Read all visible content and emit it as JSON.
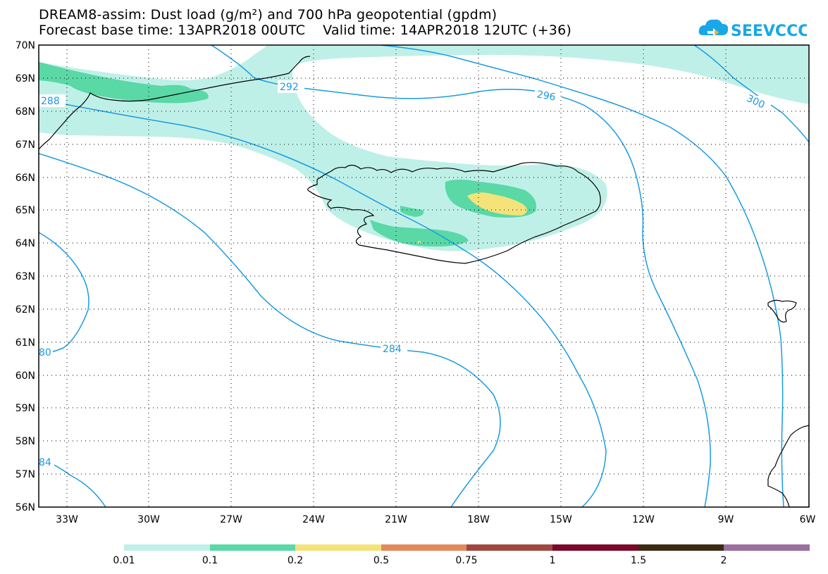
{
  "header": {
    "title_line1": "DREAM8-assim: Dust load (g/m²) and 700 hPa geopotential (gpdm)",
    "title_line2": "Forecast base time: 13APR2018 00UTC    Valid time: 14APR2018 12UTC (+36)",
    "logo_text": "SEEVCCC"
  },
  "map": {
    "lat_labels": [
      "70N",
      "69N",
      "68N",
      "67N",
      "66N",
      "65N",
      "64N",
      "63N",
      "62N",
      "61N",
      "60N",
      "59N",
      "58N",
      "57N",
      "56N"
    ],
    "lon_labels": [
      "33W",
      "30W",
      "27W",
      "24W",
      "21W",
      "18W",
      "15W",
      "12W",
      "9W",
      "6W"
    ],
    "contour_labels": [
      "288",
      "292",
      "296",
      "300",
      "284",
      "80",
      "84"
    ],
    "colors": {
      "frame": "#000000",
      "contour": "#1a9be0",
      "coast": "#000000"
    }
  },
  "legend": {
    "labels": [
      "0.01",
      "0.1",
      "0.2",
      "0.5",
      "0.75",
      "1",
      "1.5",
      "2"
    ],
    "colors": [
      "#bff0e8",
      "#5ad8a6",
      "#f5e37a",
      "#e38a5c",
      "#a04840",
      "#7a0a2a",
      "#3d2a12",
      "#9b6fa0"
    ]
  }
}
